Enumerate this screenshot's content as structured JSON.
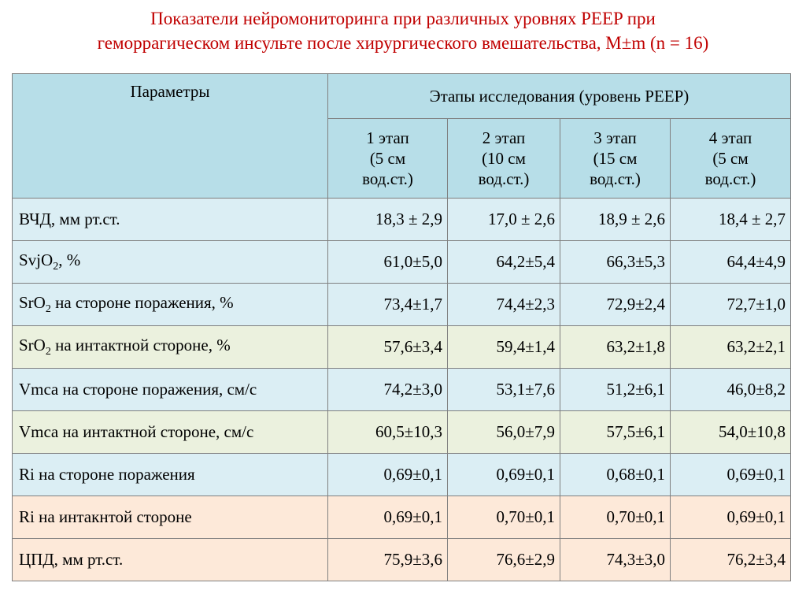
{
  "title": {
    "line1": "Показатели нейромониторинга при различных уровнях PEEP при",
    "line2": "геморрагическом инсульте после хирургического вмешательства, М±m (n = 16)"
  },
  "table": {
    "header_params": "Параметры",
    "header_stages": "Этапы исследования (уровень PEEP)",
    "stages": [
      {
        "l1": "1 этап",
        "l2": "(5 см",
        "l3": "вод.ст.)"
      },
      {
        "l1": "2 этап",
        "l2": "(10 см",
        "l3": "вод.ст.)"
      },
      {
        "l1": "3 этап",
        "l2": "(15 см",
        "l3": "вод.ст.)"
      },
      {
        "l1": "4 этап",
        "l2": "(5 см",
        "l3": "вод.ст.)"
      }
    ],
    "rows": [
      {
        "p1": "ВЧД, мм рт.ст.",
        "sub": "",
        "p2": "",
        "v": [
          "18,3 ± 2,9",
          "17,0 ± 2,6",
          "18,9 ± 2,6",
          "18,4 ± 2,7"
        ]
      },
      {
        "p1": "SvjO",
        "sub": "2",
        "p2": ", %",
        "v": [
          "61,0±5,0",
          "64,2±5,4",
          "66,3±5,3",
          "64,4±4,9"
        ]
      },
      {
        "p1": "SrO",
        "sub": "2",
        "p2": " на стороне поражения, %",
        "v": [
          "73,4±1,7",
          "74,4±2,3",
          "72,9±2,4",
          "72,7±1,0"
        ]
      },
      {
        "p1": "SrO",
        "sub": "2",
        "p2": " на интактной стороне, %",
        "v": [
          "57,6±3,4",
          "59,4±1,4",
          "63,2±1,8",
          "63,2±2,1"
        ]
      },
      {
        "p1": "Vmca на стороне поражения, см/с",
        "sub": "",
        "p2": "",
        "v": [
          "74,2±3,0",
          "53,1±7,6",
          "51,2±6,1",
          "46,0±8,2"
        ]
      },
      {
        "p1": "Vmca на интактной стороне, см/с",
        "sub": "",
        "p2": "",
        "v": [
          "60,5±10,3",
          "56,0±7,9",
          "57,5±6,1",
          "54,0±10,8"
        ]
      },
      {
        "p1": "Ri на стороне поражения",
        "sub": "",
        "p2": "",
        "v": [
          "0,69±0,1",
          "0,69±0,1",
          "0,68±0,1",
          "0,69±0,1"
        ]
      },
      {
        "p1": "Ri на интакнтой стороне",
        "sub": "",
        "p2": "",
        "v": [
          "0,69±0,1",
          "0,70±0,1",
          "0,70±0,1",
          "0,69±0,1"
        ]
      },
      {
        "p1": "ЦПД, мм рт.ст.",
        "sub": "",
        "p2": "",
        "v": [
          "75,9±3,6",
          "76,6±2,9",
          "74,3±3,0",
          "76,2±3,4"
        ]
      }
    ]
  },
  "colors": {
    "title": "#c00000",
    "header": "#b7dee8",
    "row_blue": "#dbeef4",
    "row_green": "#ebf1de",
    "row_peach": "#fde9d9"
  }
}
